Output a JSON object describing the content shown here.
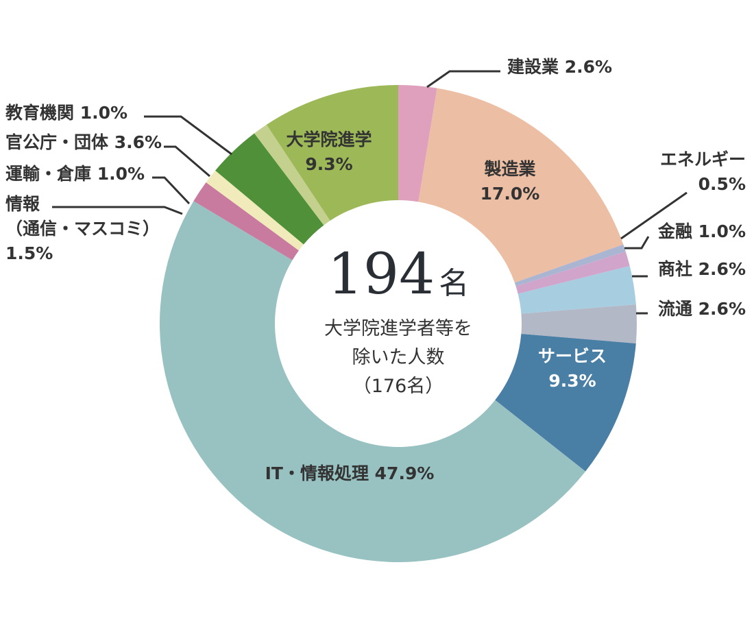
{
  "chart_data": {
    "type": "pie",
    "donut": true,
    "categories": [
      "建設業",
      "製造業",
      "エネルギー",
      "金融",
      "商社",
      "流通",
      "サービス",
      "IT・情報処理",
      "情報（通信・マスコミ）",
      "運輸・倉庫",
      "官公庁・団体",
      "教育機関",
      "大学院進学"
    ],
    "values": [
      2.6,
      17.0,
      0.5,
      1.0,
      2.6,
      2.6,
      9.3,
      47.9,
      1.5,
      1.0,
      3.6,
      1.0,
      9.3
    ],
    "colors": [
      "#dea0bc",
      "#ecbea4",
      "#aab5d2",
      "#d1a4cc",
      "#a6cde0",
      "#b3b8c6",
      "#4a7fa5",
      "#98c2c1",
      "#c97b9f",
      "#f1ebbc",
      "#4f9038",
      "#c4d08d",
      "#9cb857"
    ],
    "labels": [
      {
        "lines": [
          "建設業 2.6%"
        ]
      },
      {
        "lines": [
          "製造業",
          "17.0%"
        ]
      },
      {
        "lines": [
          "エネルギー",
          "0.5%"
        ]
      },
      {
        "lines": [
          "金融 1.0%"
        ]
      },
      {
        "lines": [
          "商社 2.6%"
        ]
      },
      {
        "lines": [
          "流通 2.6%"
        ]
      },
      {
        "lines": [
          "サービス",
          "9.3%"
        ]
      },
      {
        "lines": [
          "IT・情報処理 47.9%"
        ]
      },
      {
        "lines": [
          "情報",
          "（通信・マスコミ）",
          "1.5%"
        ]
      },
      {
        "lines": [
          "運輸・倉庫 1.0%"
        ]
      },
      {
        "lines": [
          "官公庁・団体 3.6%"
        ]
      },
      {
        "lines": [
          "教育機関 1.0%"
        ]
      },
      {
        "lines": [
          "大学院進学",
          "9.3%"
        ]
      }
    ],
    "center": {
      "value": "194",
      "unit": "名",
      "lines": [
        "大学院進学者等を",
        "除いた人数",
        "（176名）"
      ]
    }
  }
}
